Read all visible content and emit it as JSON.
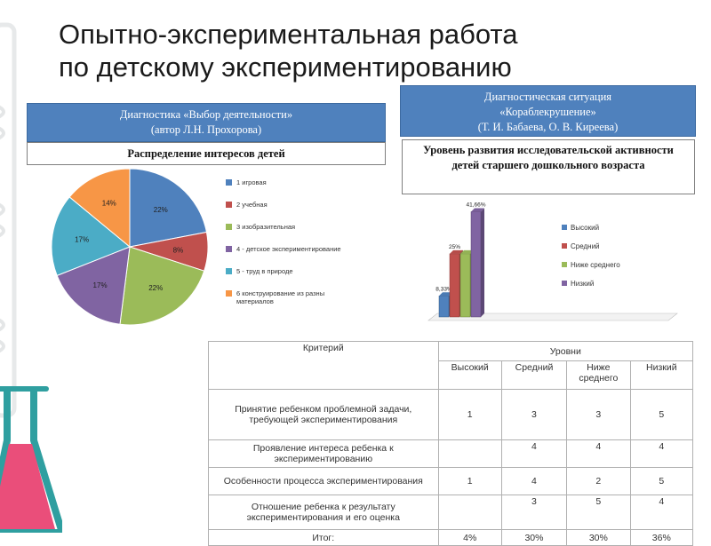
{
  "title": {
    "line1": "Опытно-экспериментальная работа",
    "line2": "по детскому экспериментированию"
  },
  "left_panel": {
    "header_line1": "Диагностика «Выбор деятельности»",
    "header_line2": "(автор Л.Н. Прохорова)",
    "subtitle": "Распределение интересов детей"
  },
  "right_panel": {
    "header_line1": "Диагностическая ситуация",
    "header_line2": "«Кораблекрушение»",
    "header_line3": "(Т. И. Бабаева, О. В. Киреева)",
    "subtitle": "Уровень развития исследовательской активности детей старшего дошкольного возраста"
  },
  "chart_data": [
    {
      "type": "pie",
      "slices": [
        {
          "label": "1   игровая",
          "value": 22,
          "data_label": "22%",
          "color": "#4f81bd"
        },
        {
          "label": "2   учебная",
          "value": 8,
          "data_label": "8%",
          "color": "#c0504d"
        },
        {
          "label": "3   изобразительная",
          "value": 22,
          "data_label": "22%",
          "color": "#9bbb59"
        },
        {
          "label": "4 - детское экспериментирование",
          "value": 17,
          "data_label": "17%",
          "color": "#8064a2"
        },
        {
          "label": "5 - труд в природе",
          "value": 17,
          "data_label": "17%",
          "color": "#4bacc6"
        },
        {
          "label": "6   конструирование из разны материалов",
          "value": 14,
          "data_label": "14%",
          "color": "#f79646"
        }
      ],
      "legend": "right"
    },
    {
      "type": "bar",
      "categories": [
        "Высокий",
        "Средний",
        "Ниже среднего",
        "Низкий"
      ],
      "values": [
        8.33,
        25,
        25,
        41.66
      ],
      "data_labels": [
        "8,33%",
        "25%",
        "",
        "41,66%"
      ],
      "colors": [
        "#4f81bd",
        "#c0504d",
        "#9bbb59",
        "#8064a2"
      ],
      "legend": "right",
      "ylim": [
        0,
        45
      ]
    }
  ],
  "table": {
    "header_criterion": "Критерий",
    "header_levels": "Уровни",
    "level_headers": [
      "Высокий",
      "Средний",
      "Ниже среднего",
      "Низкий"
    ],
    "rows": [
      {
        "criterion": "Принятие ребенком проблемной задачи, требующей экспериментирования",
        "values": [
          "1",
          "3",
          "3",
          "5"
        ]
      },
      {
        "criterion": "Проявление интереса ребенка к экспериментированию",
        "values": [
          "",
          "4",
          "4",
          "4"
        ]
      },
      {
        "criterion": "Особенности процесса экспериментирования",
        "values": [
          "1",
          "4",
          "2",
          "5"
        ]
      },
      {
        "criterion": "Отношение ребенка к результату экспериментирования и его оценка",
        "values": [
          "",
          "3",
          "5",
          "4"
        ]
      }
    ],
    "total_label": "Итог:",
    "totals": [
      "4%",
      "30%",
      "30%",
      "36%"
    ]
  }
}
